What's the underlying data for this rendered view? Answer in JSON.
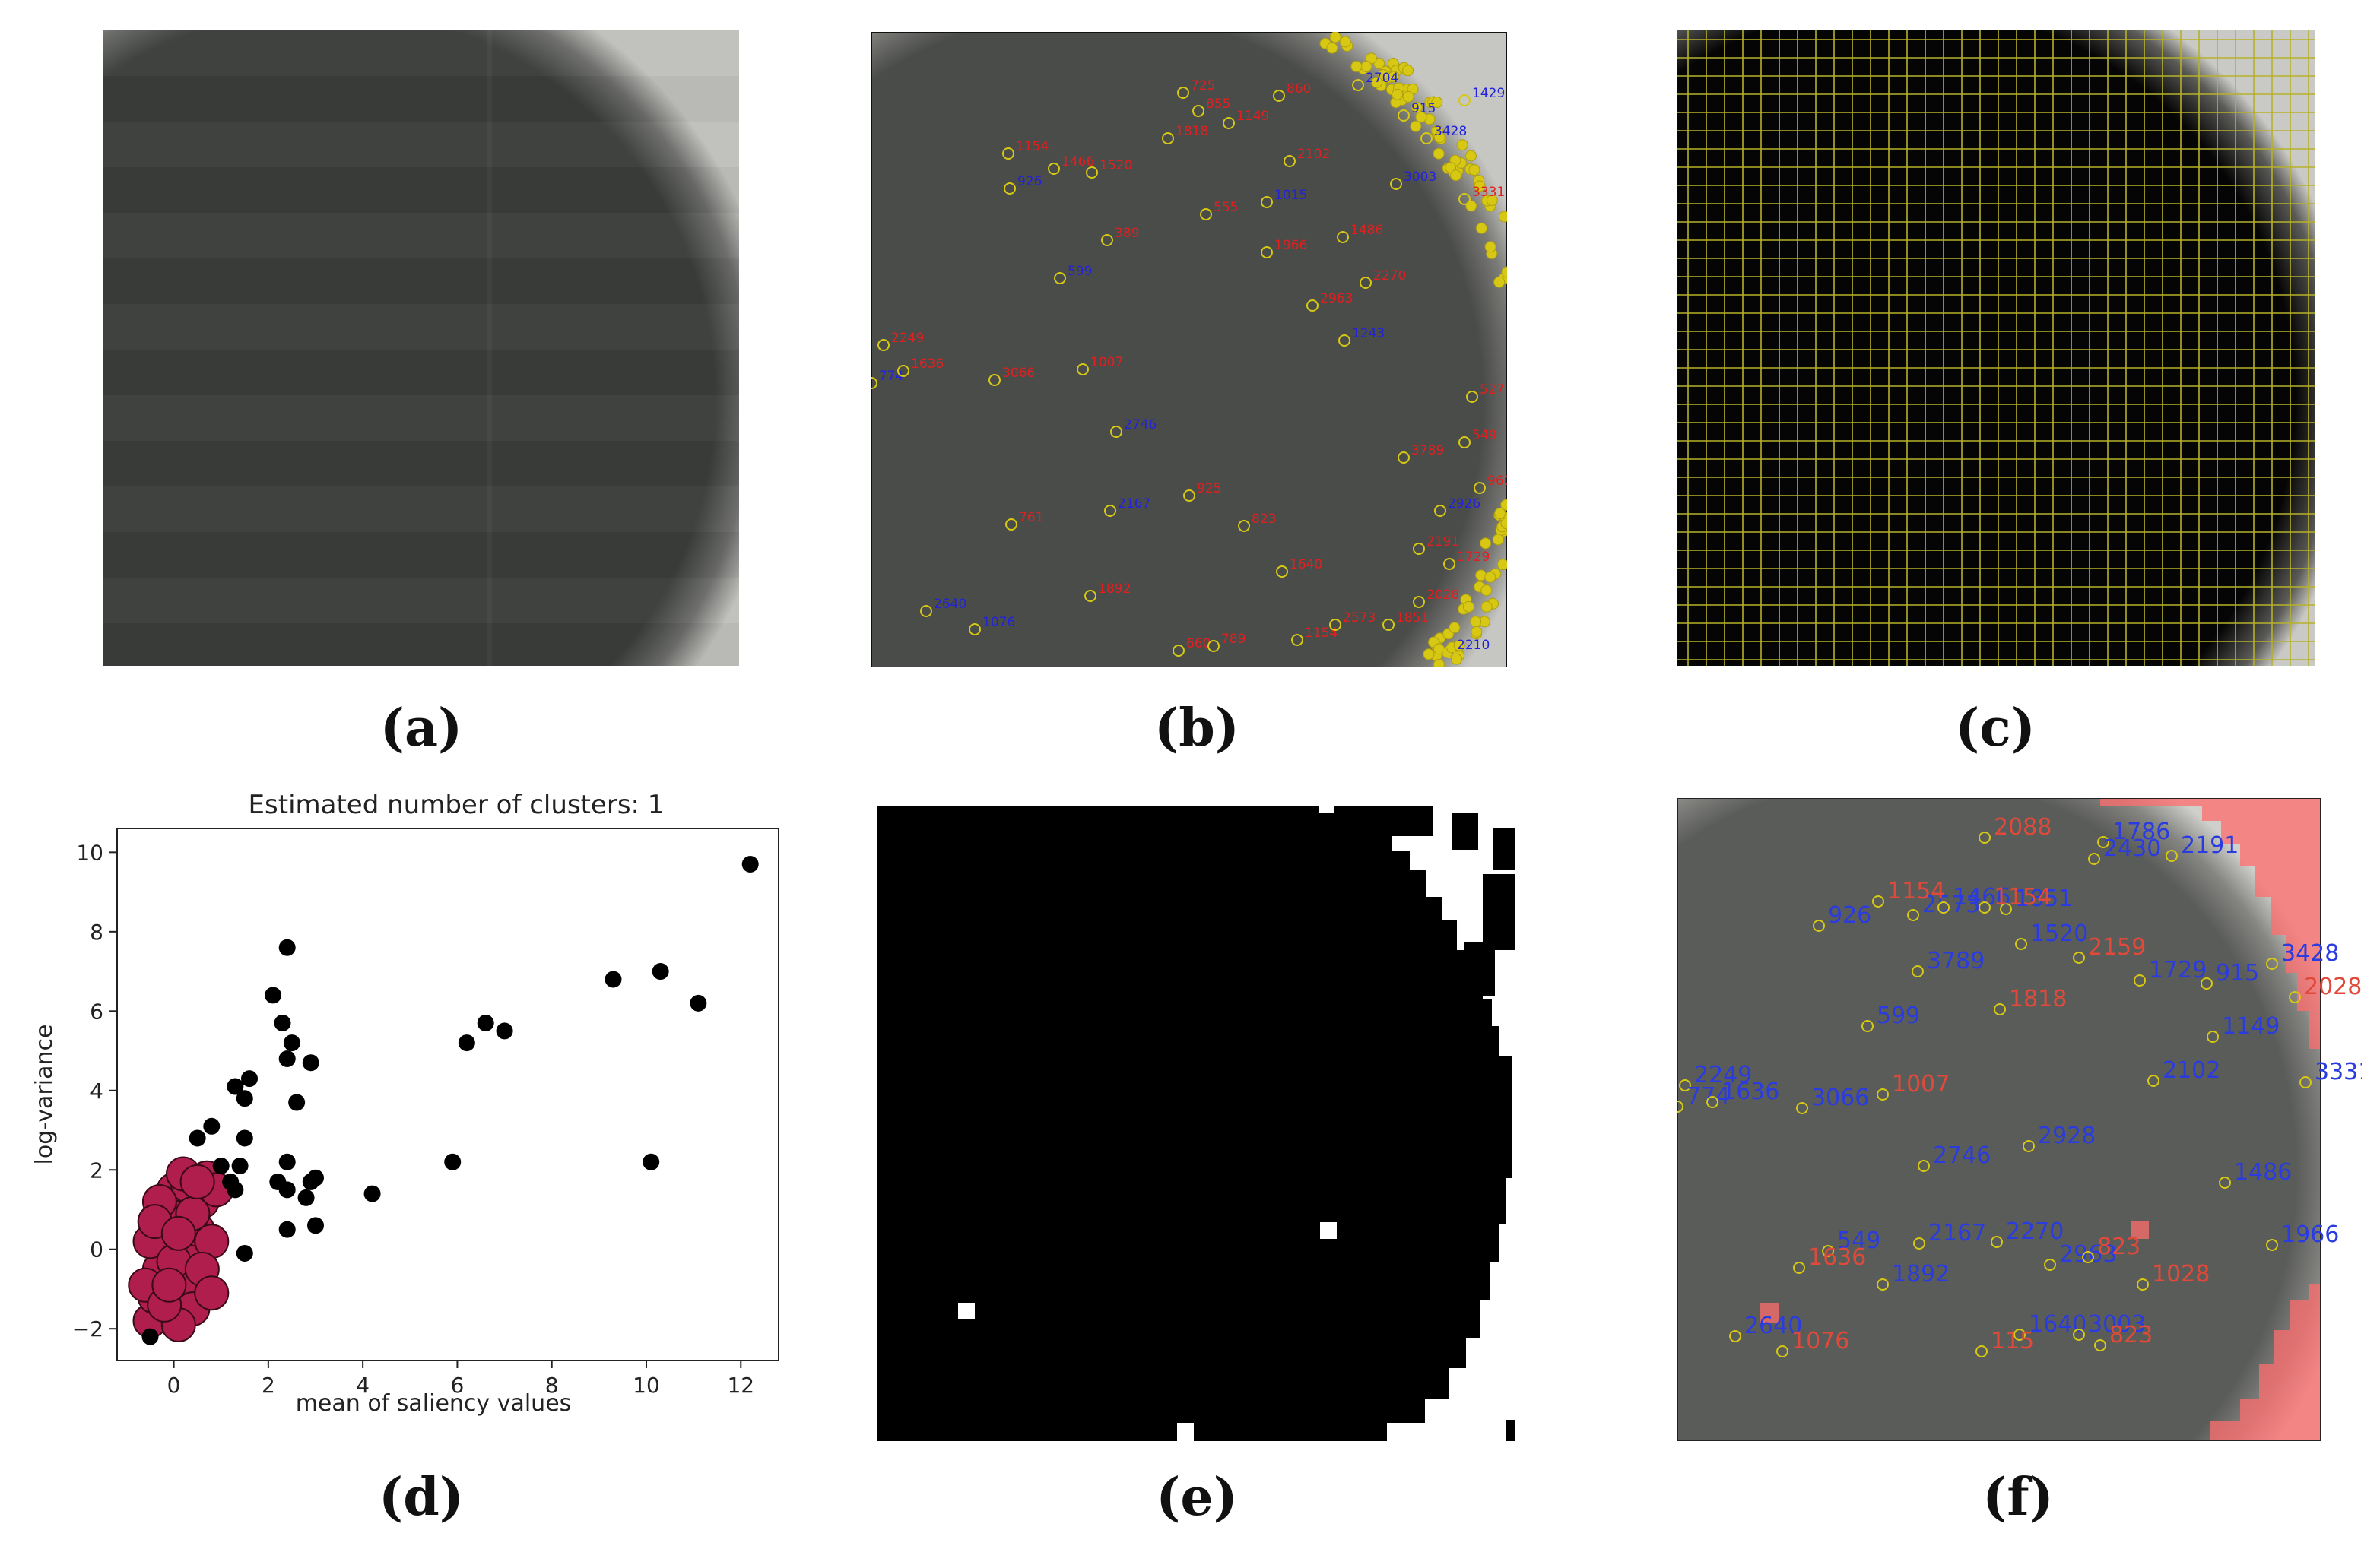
{
  "panels": {
    "a": {
      "caption": "(a)"
    },
    "b": {
      "caption": "(b)",
      "labels_blue": [
        "926",
        "1015",
        "599",
        "1243",
        "774",
        "2746",
        "2167",
        "2926",
        "2640",
        "1076",
        "2210",
        "3428",
        "2704",
        "915",
        "3003",
        "1429"
      ],
      "labels_red": [
        "725",
        "860",
        "855",
        "555",
        "389",
        "1007",
        "1636",
        "3066",
        "2249",
        "925",
        "823",
        "761",
        "1892",
        "660",
        "789",
        "2028",
        "3331",
        "1154",
        "1466",
        "1520",
        "1818",
        "1149",
        "2102",
        "1486",
        "1966",
        "2963",
        "2270",
        "1640",
        "1154",
        "2573",
        "1851",
        "2191",
        "1729",
        "3789",
        "549",
        "960",
        "527"
      ]
    },
    "c": {
      "caption": "(c)"
    },
    "d": {
      "caption": "(d)",
      "title": "Estimated number of clusters: 1",
      "xlabel": "mean of saliency values",
      "ylabel": "log-variance",
      "xticks": [
        "0",
        "2",
        "4",
        "6",
        "8",
        "10",
        "12"
      ],
      "yticks": [
        "−2",
        "0",
        "2",
        "4",
        "6",
        "8",
        "10"
      ],
      "cluster_color": "#b01e4e",
      "outlier_color": "#000000"
    },
    "e": {
      "caption": "(e)"
    },
    "f": {
      "caption": "(f)",
      "labels_blue": [
        {
          "t": "1786"
        },
        {
          "t": "2430"
        },
        {
          "t": "2191"
        },
        {
          "t": "926"
        },
        {
          "t": "2573"
        },
        {
          "t": "1466"
        },
        {
          "t": "1851"
        },
        {
          "t": "1520"
        },
        {
          "t": "3428"
        },
        {
          "t": "3789"
        },
        {
          "t": "1729"
        },
        {
          "t": "915"
        },
        {
          "t": "599"
        },
        {
          "t": "1149"
        },
        {
          "t": "2249"
        },
        {
          "t": "2102"
        },
        {
          "t": "3331"
        },
        {
          "t": "774"
        },
        {
          "t": "1636"
        },
        {
          "t": "3066"
        },
        {
          "t": "2928"
        },
        {
          "t": "2746"
        },
        {
          "t": "1486"
        },
        {
          "t": "2270"
        },
        {
          "t": "549"
        },
        {
          "t": "2167"
        },
        {
          "t": "1966"
        },
        {
          "t": "2963"
        },
        {
          "t": "1892"
        },
        {
          "t": "2640"
        },
        {
          "t": "1640"
        },
        {
          "t": "3003"
        }
      ],
      "labels_red": [
        {
          "t": "2088"
        },
        {
          "t": "1154"
        },
        {
          "t": "1154"
        },
        {
          "t": "2159"
        },
        {
          "t": "2028"
        },
        {
          "t": "1818"
        },
        {
          "t": "1007"
        },
        {
          "t": "823"
        },
        {
          "t": "1636"
        },
        {
          "t": "1028"
        },
        {
          "t": "1076"
        },
        {
          "t": "115"
        },
        {
          "t": "823"
        }
      ]
    }
  },
  "chart_data": {
    "type": "scatter",
    "title": "Estimated number of clusters: 1",
    "xlabel": "mean of saliency values",
    "ylabel": "log-variance",
    "xlim": [
      -1.2,
      12.8
    ],
    "ylim": [
      -2.8,
      10.6
    ],
    "xticks": [
      0,
      2,
      4,
      6,
      8,
      10,
      12
    ],
    "yticks": [
      -2,
      0,
      2,
      4,
      6,
      8,
      10
    ],
    "grid": false,
    "series": [
      {
        "role": "cluster",
        "color": "#b01e4e",
        "points": [
          [
            -0.5,
            -1.8
          ],
          [
            -0.4,
            -1.2
          ],
          [
            -0.3,
            -0.5
          ],
          [
            -0.2,
            0.3
          ],
          [
            -0.1,
            1.0
          ],
          [
            0.0,
            1.5
          ],
          [
            0.1,
            0.8
          ],
          [
            0.2,
            0.0
          ],
          [
            0.3,
            -0.8
          ],
          [
            0.4,
            -1.5
          ],
          [
            0.5,
            0.5
          ],
          [
            0.6,
            1.2
          ],
          [
            0.7,
            1.8
          ],
          [
            0.8,
            0.2
          ],
          [
            0.3,
            1.6
          ],
          [
            -0.3,
            1.2
          ],
          [
            -0.6,
            -0.9
          ],
          [
            -0.5,
            0.2
          ],
          [
            0.1,
            -1.9
          ],
          [
            0.0,
            -0.3
          ],
          [
            0.4,
            0.9
          ],
          [
            0.9,
            1.5
          ],
          [
            0.2,
            1.9
          ],
          [
            -0.2,
            -1.4
          ],
          [
            0.6,
            -0.5
          ],
          [
            0.8,
            -1.1
          ],
          [
            -0.4,
            0.7
          ],
          [
            0.5,
            1.7
          ],
          [
            0.1,
            0.4
          ],
          [
            -0.1,
            -0.9
          ]
        ]
      },
      {
        "role": "outliers",
        "color": "#000000",
        "points": [
          [
            -0.5,
            -2.2
          ],
          [
            0.5,
            2.8
          ],
          [
            0.8,
            3.1
          ],
          [
            1.0,
            2.1
          ],
          [
            1.2,
            1.7
          ],
          [
            1.3,
            4.1
          ],
          [
            1.4,
            2.1
          ],
          [
            1.5,
            3.8
          ],
          [
            1.6,
            4.3
          ],
          [
            1.5,
            -0.1
          ],
          [
            1.5,
            2.8
          ],
          [
            1.3,
            1.5
          ],
          [
            2.1,
            6.4
          ],
          [
            2.3,
            5.7
          ],
          [
            2.4,
            7.6
          ],
          [
            2.5,
            5.2
          ],
          [
            2.4,
            4.8
          ],
          [
            2.6,
            3.7
          ],
          [
            2.9,
            4.7
          ],
          [
            2.4,
            2.2
          ],
          [
            2.2,
            1.7
          ],
          [
            2.4,
            1.5
          ],
          [
            2.8,
            1.3
          ],
          [
            2.9,
            1.7
          ],
          [
            3.0,
            1.8
          ],
          [
            2.4,
            0.5
          ],
          [
            3.0,
            0.6
          ],
          [
            4.2,
            1.4
          ],
          [
            5.9,
            2.2
          ],
          [
            6.2,
            5.2
          ],
          [
            6.6,
            5.7
          ],
          [
            7.0,
            5.5
          ],
          [
            9.3,
            6.8
          ],
          [
            10.3,
            7.0
          ],
          [
            11.1,
            6.2
          ],
          [
            10.1,
            2.2
          ],
          [
            12.2,
            9.7
          ]
        ]
      }
    ]
  }
}
